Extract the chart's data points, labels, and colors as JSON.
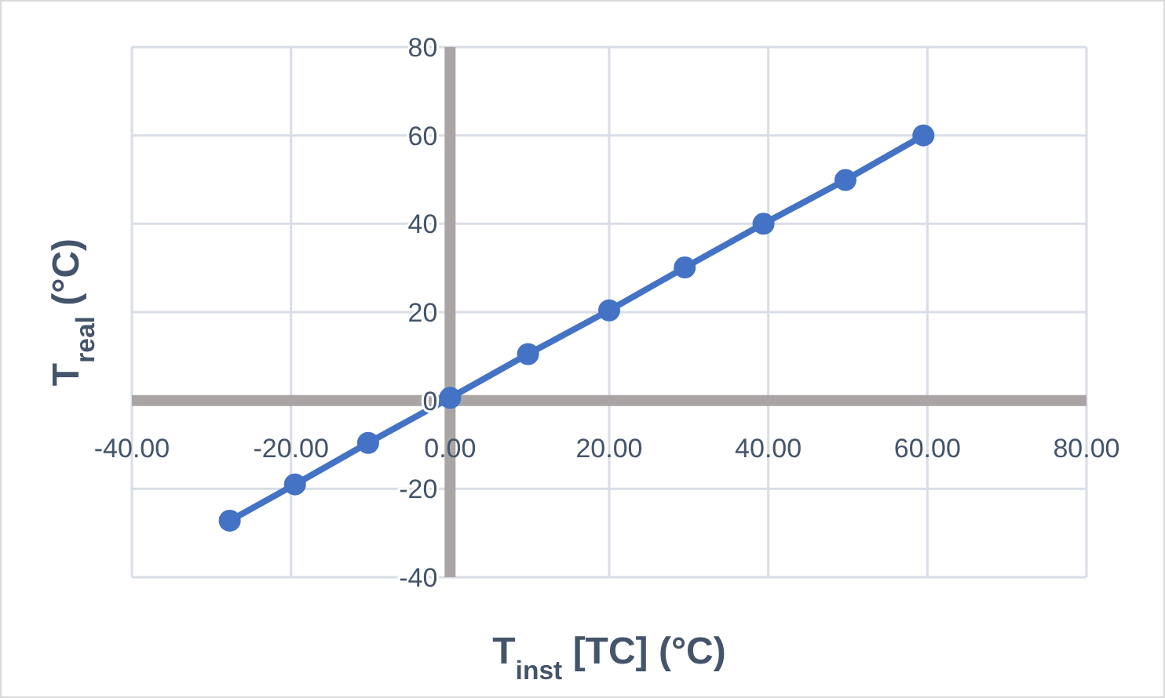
{
  "chart_data": {
    "type": "line",
    "xlabel": "T$_{inst}$ [TC]  (°C)",
    "ylabel": "T$_{real}$ (°C)",
    "x": [
      -27.7,
      -19.5,
      -10.3,
      0,
      9.8,
      20,
      29.5,
      39.4,
      49.7,
      59.5
    ],
    "series": [
      {
        "color": "#4472c4",
        "values": [
          -27.2,
          -19,
          -9.6,
          0.6,
          10.5,
          20.4,
          30.1,
          40,
          49.9,
          60
        ]
      }
    ],
    "xlim": [
      -40,
      80
    ],
    "ylim": [
      -40,
      80
    ],
    "xticks": [
      {
        "value": -40,
        "label": "-40.00"
      },
      {
        "value": -20,
        "label": "-20.00"
      },
      {
        "value": 0,
        "label": "0.00"
      },
      {
        "value": 20,
        "label": "20.00"
      },
      {
        "value": 40,
        "label": "40.00"
      },
      {
        "value": 60,
        "label": "60.00"
      },
      {
        "value": 80,
        "label": "80.00"
      }
    ],
    "yticks": [
      -40,
      -20,
      0,
      20,
      40,
      60,
      80
    ],
    "grid": true,
    "marker": "circle",
    "line_style": "solid"
  }
}
